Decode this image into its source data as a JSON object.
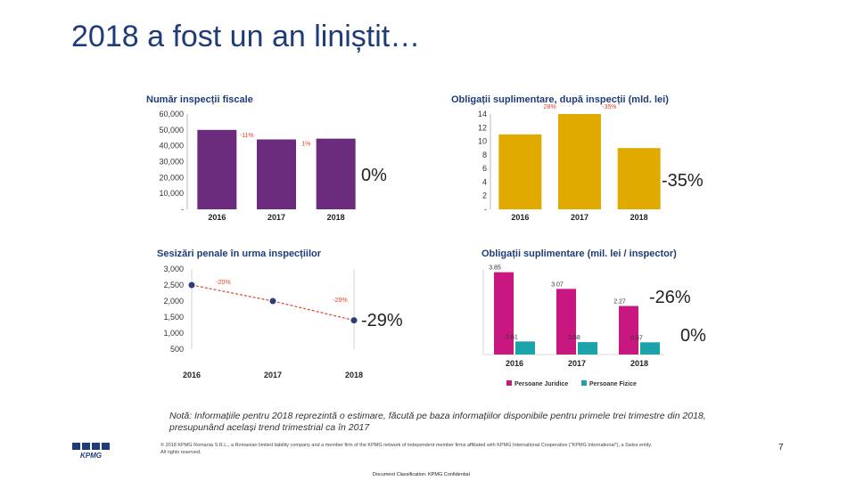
{
  "slide": {
    "title": "2018 a fost un an liniștit…",
    "note_line1": "Notă: Informațiile pentru 2018 reprezintă o estimare, făcută pe baza informațiilor disponibile pentru primele trei trimestre din 2018,",
    "note_line2": "presupunând același trend trimestrial ca în 2017",
    "copyright_line1": "© 2018 KPMG Romania S.R.L., a Romanian limited liability company and a member firm of the KPMG network of independent member firms affiliated with KPMG International Cooperative (\"KPMG International\"), a Swiss entity.",
    "copyright_line2": "All rights reserved.",
    "classification": "Document Classification: KPMG Confidential",
    "page_number": "7",
    "logo_text": "KPMG"
  },
  "colors": {
    "title": "#1e3c78",
    "purple": "#6b2c7e",
    "gold": "#e0aa00",
    "magenta": "#c8177e",
    "teal": "#1aa3a8",
    "line_blue": "#2c3e7a",
    "pct_red": "#e0422b"
  },
  "annotations": {
    "a1": "0%",
    "a2": "-35%",
    "a3": "-29%",
    "a4": "-26%",
    "a5": "0%"
  },
  "chart_data": [
    {
      "type": "bar",
      "title": "Număr inspecții fiscale",
      "categories": [
        "2016",
        "2017",
        "2018"
      ],
      "values": [
        50000,
        44000,
        44500
      ],
      "ylim": [
        0,
        60000
      ],
      "yticks": [
        "-",
        "10,000",
        "20,000",
        "30,000",
        "40,000",
        "50,000",
        "60,000"
      ],
      "change_labels": [
        "-11%",
        "1%"
      ]
    },
    {
      "type": "bar",
      "title": "Obligații suplimentare, după inspecții (mld. lei)",
      "categories": [
        "2016",
        "2017",
        "2018"
      ],
      "values": [
        11,
        14,
        9
      ],
      "ylim": [
        0,
        14
      ],
      "yticks": [
        "-",
        "2",
        "4",
        "6",
        "8",
        "10",
        "12",
        "14"
      ],
      "change_labels": [
        "28%",
        "-35%"
      ]
    },
    {
      "type": "line",
      "title": "Sesizări penale în urma inspecțiilor",
      "categories": [
        "2016",
        "2017",
        "2018"
      ],
      "values": [
        2500,
        2000,
        1400
      ],
      "ylim": [
        500,
        3000
      ],
      "yticks": [
        "500",
        "1,000",
        "1,500",
        "2,000",
        "2,500",
        "3,000"
      ],
      "change_labels": [
        "-20%",
        "-29%"
      ]
    },
    {
      "type": "bar",
      "title": "Obligații suplimentare (mil. lei / inspector)",
      "categories": [
        "2016",
        "2017",
        "2018"
      ],
      "series": [
        {
          "name": "Persoane Juridice",
          "values": [
            3.85,
            3.07,
            2.27
          ],
          "labels": [
            "3.85",
            "3.07",
            "2.27"
          ]
        },
        {
          "name": "Persoane Fizice",
          "values": [
            0.61,
            0.58,
            0.57
          ],
          "labels": [
            "0.61",
            "0.58",
            "0.57"
          ]
        }
      ],
      "ylim": [
        0,
        4
      ]
    }
  ]
}
